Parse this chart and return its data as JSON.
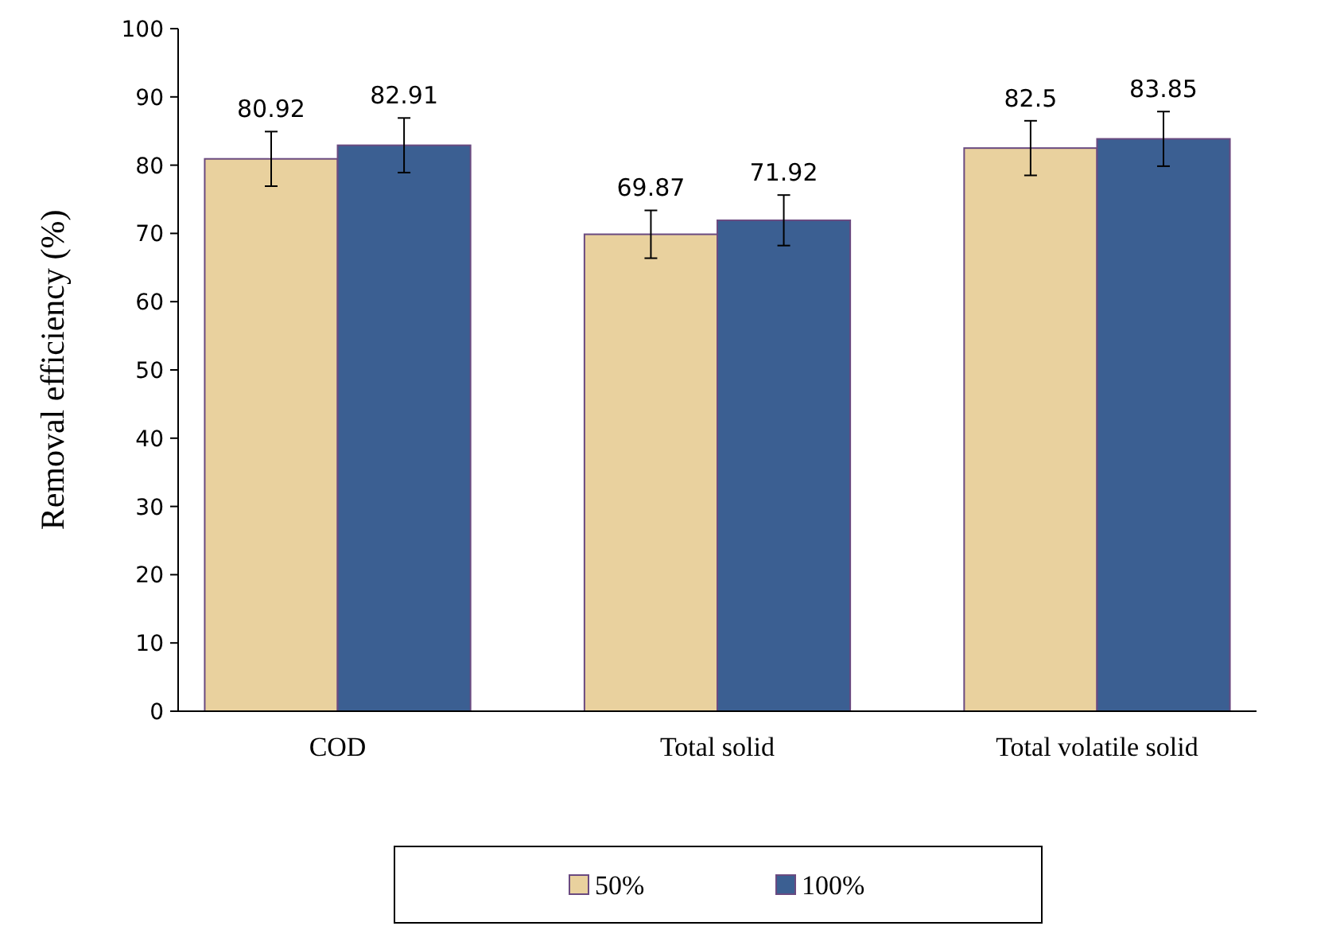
{
  "chart_data": {
    "type": "bar",
    "ylabel": "Removal efficiency (%)",
    "categories": [
      "COD",
      "Total  solid",
      "Total volatile solid"
    ],
    "series": [
      {
        "name": "50%",
        "color": "#e9d19e",
        "values": [
          80.92,
          69.87,
          82.5
        ],
        "errors": [
          4,
          3.5,
          4
        ]
      },
      {
        "name": "100%",
        "color": "#3b5f92",
        "values": [
          82.91,
          71.92,
          83.85
        ],
        "errors": [
          4,
          3.7,
          4
        ]
      }
    ],
    "ylim": [
      0,
      100
    ],
    "yticks": [
      0,
      10,
      20,
      30,
      40,
      50,
      60,
      70,
      80,
      90,
      100
    ],
    "data_labels": true,
    "legend": "bottom",
    "grid": false
  }
}
